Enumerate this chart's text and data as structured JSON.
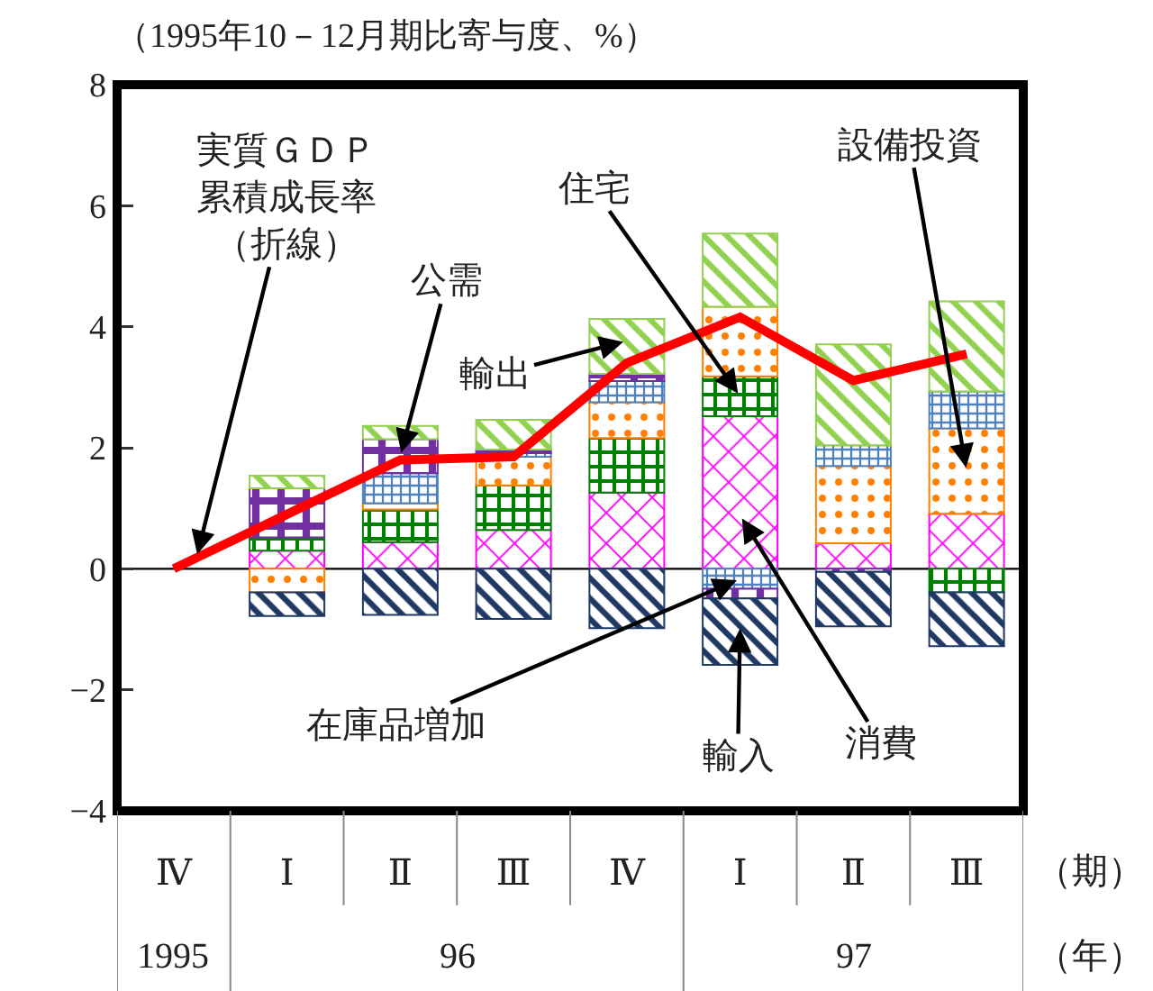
{
  "chart_data": {
    "type": "bar",
    "stacked": true,
    "ylabel": "（1995年10－12月期比寄与度、%）",
    "categories": [
      "Ⅳ",
      "Ⅰ",
      "Ⅱ",
      "Ⅲ",
      "Ⅳ",
      "Ⅰ",
      "Ⅱ",
      "Ⅲ"
    ],
    "series": [
      {
        "name": "消費",
        "color": "#ff00ff",
        "values": [
          null,
          0.3,
          0.44,
          0.64,
          1.26,
          2.52,
          0.42,
          0.91
        ]
      },
      {
        "name": "住宅",
        "color": "#008000",
        "values": [
          null,
          0.22,
          0.54,
          0.74,
          0.9,
          0.66,
          null,
          -0.39
        ]
      },
      {
        "name": "設備投資",
        "color": "#ff8000",
        "values": [
          null,
          -0.39,
          0.1,
          0.47,
          0.59,
          1.15,
          1.28,
          1.41
        ]
      },
      {
        "name": "在庫品増加",
        "color": "#4f81bd",
        "values": [
          null,
          null,
          0.5,
          0.06,
          0.35,
          -0.33,
          0.34,
          0.61
        ]
      },
      {
        "name": "公需",
        "color": "#7030a0",
        "values": [
          null,
          0.81,
          0.56,
          0.06,
          0.12,
          -0.16,
          -0.05,
          null
        ]
      },
      {
        "name": "輸出",
        "color": "#92d050",
        "values": [
          null,
          0.21,
          0.22,
          0.49,
          0.91,
          1.21,
          1.67,
          1.49
        ]
      },
      {
        "name": "輸入",
        "color": "#1f3864",
        "values": [
          null,
          -0.39,
          -0.76,
          -0.83,
          -0.98,
          -1.1,
          -0.9,
          -0.89
        ]
      },
      {
        "name": "実質ＧＤＰ累積成長率（折線）",
        "type": "line",
        "color": "#ff0000",
        "values": [
          0,
          0.9,
          1.8,
          1.85,
          3.4,
          4.16,
          3.11,
          3.55
        ]
      }
    ],
    "ref_lines": [
      {
        "axis": "y",
        "value": 0,
        "color": "#000000"
      }
    ],
    "ylim": [
      -4,
      8
    ],
    "yticks": [
      -4,
      -2,
      0,
      2,
      4,
      6,
      8
    ],
    "grid": false,
    "legend": false,
    "annotations": [
      "1995",
      "96",
      "97",
      "（期）",
      "（年）"
    ]
  }
}
